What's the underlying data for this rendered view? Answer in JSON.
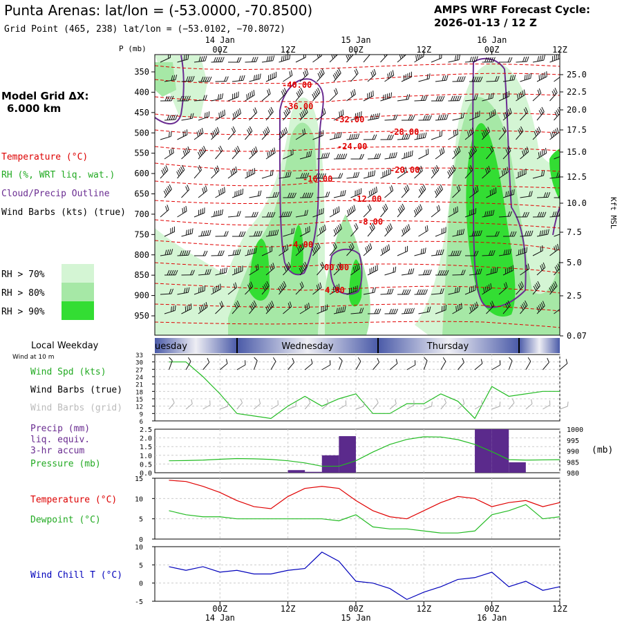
{
  "header": {
    "title": "Punta Arenas:  lat/lon = (-53.0000, -70.8500)",
    "subtitle": "Grid Point (465, 238) lat/lon = (−53.0102, −70.8072)",
    "cycle_line1": "AMPS WRF Forecast Cycle:",
    "cycle_line2": "2026-01-13 / 12  Z"
  },
  "left_legend": {
    "grid_label": "Model Grid ΔX:",
    "grid_value": "6.000 km",
    "temperature": "Temperature (°C)",
    "rh": "RH (%, WRT liq. wat.)",
    "cloud": "Cloud/Precip Outline",
    "wind": "Wind Barbs (kts) (true)",
    "rh70": "RH > 70%",
    "rh80": "RH > 80%",
    "rh90": "RH > 90%",
    "local_weekday": "Local Weekday",
    "wind10": "Wind at 10 m",
    "wind_spd": "Wind Spd (kts)",
    "barbs_true": "Wind Barbs (true)",
    "barbs_grid": "Wind Barbs (grid)",
    "precip1": "Precip (mm)",
    "precip2": "liq. equiv.",
    "precip3": "3-hr accum",
    "pressure": "Pressure (mb)",
    "temp2": "Temperature (°C)",
    "dewpoint": "Dewpoint (°C)",
    "windchill": "Wind Chill T (°C)"
  },
  "colors": {
    "temp": "#ff0000",
    "rh_green": "#22bb22",
    "rh70": "#d4f5d4",
    "rh80": "#a6e8a6",
    "rh90": "#33dd33",
    "cloud": "#6a2c91",
    "precip": "#5b2a8c",
    "windchill": "#0000bb",
    "bands": "#4a5aa8"
  },
  "time_axis": {
    "top_ticks": [
      "00Z",
      "12Z",
      "00Z",
      "12Z",
      "00Z",
      "12Z"
    ],
    "top_dates": [
      "14 Jan",
      "15 Jan",
      "16 Jan"
    ],
    "bottom_ticks": [
      "00Z",
      "12Z",
      "00Z",
      "12Z",
      "00Z",
      "12Z"
    ],
    "bottom_dates": [
      "14 Jan",
      "15 Jan",
      "16 Jan"
    ]
  },
  "chart_data": [
    {
      "type": "heatmap",
      "name": "cross-section",
      "ylabel": "P (mb)",
      "ylabel_right": "Kft MSL",
      "pressure_levels": [
        350,
        400,
        450,
        500,
        550,
        600,
        650,
        700,
        750,
        800,
        850,
        900,
        950
      ],
      "height_ticks": [
        "25.0",
        "22.5",
        "20.0",
        "17.5",
        "15.0",
        "12.5",
        "10.0",
        "7.5",
        "5.0",
        "2.5",
        "0.07"
      ],
      "temperature_labels": [
        "-40.00",
        "-36.00",
        "-32.00",
        "-28.00",
        "-24.00",
        "-20.00",
        "-16.00",
        "-12.00",
        "-8.00",
        "-4.00",
        "00.00",
        "4.00"
      ]
    },
    {
      "type": "line",
      "name": "wind-speed",
      "weekdays": [
        "uesday",
        "Wednesday",
        "Thursday"
      ],
      "y_ticks": [
        6,
        9,
        12,
        15,
        18,
        21,
        24,
        27,
        30,
        33
      ],
      "ylim": [
        6,
        33
      ],
      "x_hours": [
        -9,
        -6,
        -3,
        0,
        3,
        6,
        9,
        12,
        15,
        18,
        21,
        24,
        27,
        30,
        33,
        36,
        39,
        42,
        45,
        48,
        51,
        54,
        57,
        60
      ],
      "series": [
        {
          "name": "Wind Spd (kts)",
          "values": [
            30,
            30,
            24,
            17,
            9,
            8,
            7,
            12,
            16,
            12,
            15,
            17,
            9,
            9,
            13,
            13,
            17,
            14,
            7,
            20,
            16,
            17,
            18,
            18
          ]
        }
      ]
    },
    {
      "type": "bar",
      "name": "precip-pressure",
      "y_ticks": [
        "0.0",
        "0.5",
        "1.0",
        "1.5",
        "2.0",
        "2.5"
      ],
      "ylim": [
        0,
        2.5
      ],
      "y2_ticks": [
        980,
        985,
        990,
        995,
        1000
      ],
      "y2lim": [
        980,
        1000
      ],
      "y2label": "(mb)",
      "x_hours": [
        -9,
        -6,
        -3,
        0,
        3,
        6,
        9,
        12,
        15,
        18,
        21,
        24,
        27,
        30,
        33,
        36,
        39,
        42,
        45,
        48,
        51,
        54,
        57,
        60
      ],
      "precip": [
        0,
        0,
        0,
        0,
        0,
        0,
        0,
        0,
        0.15,
        0.05,
        1.0,
        2.1,
        0,
        0,
        0,
        0,
        0,
        0,
        0,
        2.5,
        2.5,
        0.6,
        0,
        0
      ],
      "series": [
        {
          "name": "Pressure (mb)",
          "values": [
            985.5,
            985.6,
            985.8,
            986.2,
            986.5,
            986.4,
            986.1,
            985.5,
            984.5,
            983.0,
            983.0,
            985.5,
            989.5,
            993.0,
            995.3,
            996.5,
            996.4,
            995.2,
            993.0,
            989.7,
            986.0,
            985.8,
            985.9,
            986.0
          ]
        }
      ]
    },
    {
      "type": "line",
      "name": "temperature-dewpoint",
      "y_ticks": [
        0,
        5,
        10,
        15
      ],
      "ylim": [
        0,
        15
      ],
      "x_hours": [
        -9,
        -6,
        -3,
        0,
        3,
        6,
        9,
        12,
        15,
        18,
        21,
        24,
        27,
        30,
        33,
        36,
        39,
        42,
        45,
        48,
        51,
        54,
        57,
        60
      ],
      "series": [
        {
          "name": "Temperature (°C)",
          "values": [
            14.5,
            14.2,
            13.0,
            11.5,
            9.5,
            8.0,
            7.5,
            10.5,
            12.5,
            13.0,
            12.5,
            9.5,
            7.0,
            5.5,
            5.0,
            7.0,
            9.0,
            10.5,
            10.0,
            8.0,
            9.0,
            9.5,
            8.0,
            9.0
          ]
        },
        {
          "name": "Dewpoint (°C)",
          "values": [
            7.0,
            6.0,
            5.5,
            5.5,
            5.0,
            5.0,
            5.0,
            5.0,
            5.0,
            5.0,
            4.5,
            6.0,
            3.0,
            2.5,
            2.5,
            2.0,
            1.5,
            1.5,
            2.0,
            6.0,
            7.0,
            8.5,
            5.0,
            5.5
          ]
        }
      ]
    },
    {
      "type": "line",
      "name": "wind-chill",
      "y_ticks": [
        -5,
        0,
        5,
        10
      ],
      "ylim": [
        -5,
        10
      ],
      "x_hours": [
        -9,
        -6,
        -3,
        0,
        3,
        6,
        9,
        12,
        15,
        18,
        21,
        24,
        27,
        30,
        33,
        36,
        39,
        42,
        45,
        48,
        51,
        54,
        57,
        60
      ],
      "series": [
        {
          "name": "Wind Chill T (°C)",
          "values": [
            4.5,
            3.5,
            4.5,
            3.0,
            3.5,
            2.5,
            2.5,
            3.5,
            4.0,
            8.5,
            6.0,
            0.5,
            0,
            -1.5,
            -4.5,
            -2.5,
            -1.0,
            1.0,
            1.5,
            3.0,
            -1.0,
            0.5,
            -2.0,
            -1.0
          ]
        }
      ]
    }
  ]
}
